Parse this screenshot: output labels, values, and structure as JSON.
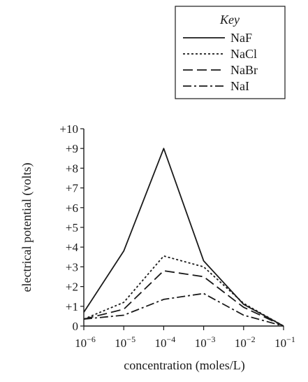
{
  "chart_data": {
    "type": "line",
    "title": "",
    "xlabel": "concentration (moles/L)",
    "ylabel": "electrical potential (volts)",
    "categories": [
      "10",
      "10",
      "10",
      "10",
      "10",
      "10"
    ],
    "category_exponents": [
      "−6",
      "−5",
      "−4",
      "−3",
      "−2",
      "−1"
    ],
    "yticks": [
      "0",
      "+1",
      "+2",
      "+3",
      "+4",
      "+5",
      "+6",
      "+7",
      "+8",
      "+9",
      "+10"
    ],
    "ylim": [
      0,
      10
    ],
    "grid": false,
    "legend": {
      "title": "Key",
      "placement": "top-right"
    },
    "series": [
      {
        "name": "NaF",
        "dash": "solid",
        "values": [
          0.7,
          3.8,
          9.0,
          3.3,
          1.1,
          0.0
        ]
      },
      {
        "name": "NaCl",
        "dash": "dotted",
        "values": [
          0.35,
          1.2,
          3.55,
          3.0,
          1.15,
          0.0
        ]
      },
      {
        "name": "NaBr",
        "dash": "dashed",
        "values": [
          0.35,
          0.85,
          2.8,
          2.5,
          0.95,
          0.0
        ]
      },
      {
        "name": "NaI",
        "dash": "dash-dot",
        "values": [
          0.35,
          0.55,
          1.35,
          1.65,
          0.55,
          0.0
        ]
      }
    ]
  }
}
